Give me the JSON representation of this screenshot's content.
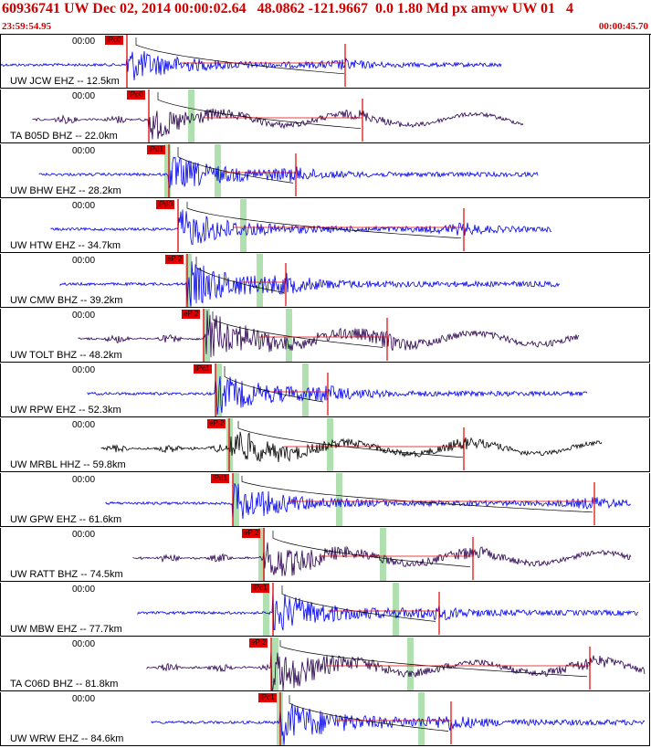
{
  "header": {
    "title": "60936741 UW Dec 02, 2014 00:00:02.64   48.0862 -121.9667  0.0 1.80 Md px amyw UW 01   4",
    "start_time": "23:59:54.95",
    "end_time": "00:00:45.70"
  },
  "colors": {
    "red": "#e00000",
    "blue": "#0000ee",
    "dark": "#2a0050",
    "black": "#000000",
    "green": "#b0e0b0"
  },
  "traces": [
    {
      "label": "UW JCW EHZ -- 12.5km",
      "time_label": "00:00",
      "pick_label": "iPc0",
      "color": "blue",
      "amplitude": 0.3
    },
    {
      "label": "TA B05D BHZ -- 22.0km",
      "time_label": "00:00",
      "pick_label": "iPc0",
      "color": "dark",
      "amplitude": 0.25
    },
    {
      "label": "UW BHW EHZ -- 28.2km",
      "time_label": "00:00",
      "pick_label": "iPd1",
      "color": "blue",
      "amplitude": 0.35
    },
    {
      "label": "UW HTW EHZ -- 34.7km",
      "time_label": "00:00",
      "pick_label": "iPd0",
      "color": "blue",
      "amplitude": 0.4
    },
    {
      "label": "UW CMW BHZ -- 39.2km",
      "time_label": "00:00",
      "pick_label": "eP 2",
      "color": "blue",
      "amplitude": 0.5
    },
    {
      "label": "UW TOLT BHZ -- 48.2km",
      "time_label": "00:00",
      "pick_label": "eP 2",
      "color": "dark",
      "amplitude": 0.6
    },
    {
      "label": "UW RPW EHZ -- 52.3km",
      "time_label": "00:00",
      "pick_label": "iPc1",
      "color": "blue",
      "amplitude": 0.4
    },
    {
      "label": "UW MRBL HHZ -- 59.8km",
      "time_label": "00:00",
      "pick_label": "eP 2",
      "color": "black",
      "amplitude": 0.35
    },
    {
      "label": "UW GPW EHZ -- 61.6km",
      "time_label": "00:00",
      "pick_label": "iPd1",
      "color": "blue",
      "amplitude": 0.4
    },
    {
      "label": "UW RATT BHZ -- 74.5km",
      "time_label": "00:00",
      "pick_label": "eP 2",
      "color": "dark",
      "amplitude": 0.4
    },
    {
      "label": "UW MBW EHZ -- 77.7km",
      "time_label": "00:00",
      "pick_label": "iPc1",
      "color": "blue",
      "amplitude": 0.45
    },
    {
      "label": "TA C06D BHZ -- 81.8km",
      "time_label": "00:00",
      "pick_label": "eP 2",
      "color": "dark",
      "amplitude": 0.5
    },
    {
      "label": "UW WRW EHZ -- 84.6km",
      "time_label": "00:00",
      "pick_label": "iPc1",
      "color": "blue",
      "amplitude": 0.5
    }
  ]
}
